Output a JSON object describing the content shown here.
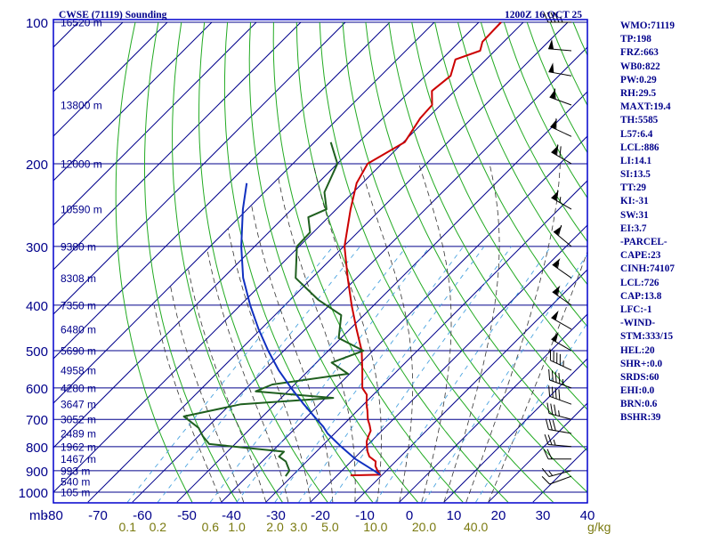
{
  "header": {
    "station": "CWSE (71119) Sounding",
    "time": "1200Z 16 OCT 25"
  },
  "indices": [
    "WMO:71119",
    "TP:198",
    "FRZ:663",
    "WB0:822",
    "PW:0.29",
    "RH:29.5",
    "MAXT:19.4",
    "TH:5585",
    "L57:6.4",
    "LCL:886",
    "LI:14.1",
    "SI:13.5",
    "TT:29",
    "KI:-31",
    "SW:31",
    "EI:3.7",
    "-PARCEL-",
    "CAPE:23",
    "CINH:74107",
    "LCL:726",
    "CAP:13.8",
    "LFC:-1",
    "-WIND-",
    "STM:333/15",
    "HEL:20",
    "SHR+:0.0",
    "SRDS:60",
    "EHI:0.0",
    "BRN:0.6",
    "BSHR:39"
  ],
  "colors": {
    "frame": "#0000cd",
    "isotherm": "#00008b",
    "dry_adiabat": "#22aa22",
    "moist_adiabat": "#333333",
    "mixing_ratio": "#4aa3df",
    "temperature": "#cc0000",
    "dewpoint": "#1f5f1f",
    "parcel": "#1030c0",
    "text": "#00008b",
    "mixing_label": "#7a7a10"
  },
  "chart_data": {
    "type": "line",
    "title": "CWSE (71119) Sounding",
    "subtitle": "1200Z 16 OCT 25",
    "xlabel": "",
    "ylabel": "mb",
    "pressure_ticks": [
      100,
      200,
      300,
      400,
      500,
      600,
      700,
      800,
      900,
      1000
    ],
    "pressure_tick_labels": [
      "100",
      "200",
      "300",
      "400",
      "500",
      "600",
      "700",
      "800",
      "900",
      "1000"
    ],
    "pressure_unit": "mb",
    "temperature_ticks": [
      -80,
      -70,
      -60,
      -50,
      -40,
      -30,
      -20,
      -10,
      0,
      10,
      20,
      30,
      40
    ],
    "temperature_tick_labels": [
      "-80",
      "-70",
      "-60",
      "-50",
      "-40",
      "-30",
      "-20",
      "-10",
      "0",
      "10",
      "20",
      "30",
      "40"
    ],
    "xlim": [
      -80,
      40
    ],
    "ylim": [
      1050,
      100
    ],
    "grid": true,
    "height_labels": [
      {
        "p": 100,
        "text": "16520 m"
      },
      {
        "p": 150,
        "text": "13800 m"
      },
      {
        "p": 200,
        "text": "12000 m"
      },
      {
        "p": 250,
        "text": "10590 m"
      },
      {
        "p": 300,
        "text": "9380 m"
      },
      {
        "p": 350,
        "text": "8308 m"
      },
      {
        "p": 400,
        "text": "7350 m"
      },
      {
        "p": 450,
        "text": "6480 m"
      },
      {
        "p": 500,
        "text": "5690 m"
      },
      {
        "p": 550,
        "text": "4958 m"
      },
      {
        "p": 600,
        "text": "4280 m"
      },
      {
        "p": 650,
        "text": "3647 m"
      },
      {
        "p": 700,
        "text": "3052 m"
      },
      {
        "p": 750,
        "text": "2489 m"
      },
      {
        "p": 800,
        "text": "1962 m"
      },
      {
        "p": 850,
        "text": "1467 m"
      },
      {
        "p": 900,
        "text": "993 m"
      },
      {
        "p": 950,
        "text": "540 m"
      },
      {
        "p": 1000,
        "text": "105 m"
      }
    ],
    "mixing_ratio_labels": [
      "0.1",
      "0.2",
      "0.6",
      "1.0",
      "2.0",
      "3.0",
      "5.0",
      "10.0",
      "20.0",
      "40.0"
    ],
    "mixing_ratio_values": [
      0.1,
      0.2,
      0.6,
      1.0,
      2.0,
      3.0,
      5.0,
      10.0,
      20.0,
      40.0
    ],
    "mixing_ratio_unit": "g/kg",
    "series": [
      {
        "key": "temperature",
        "points": [
          {
            "p": 921,
            "t": 3.0
          },
          {
            "p": 918,
            "t": 9.5
          },
          {
            "p": 900,
            "t": 8.0
          },
          {
            "p": 880,
            "t": 6.5
          },
          {
            "p": 860,
            "t": 5.5
          },
          {
            "p": 840,
            "t": 3.0
          },
          {
            "p": 820,
            "t": 1.5
          },
          {
            "p": 800,
            "t": 0.2
          },
          {
            "p": 780,
            "t": -1.0
          },
          {
            "p": 760,
            "t": -1.8
          },
          {
            "p": 740,
            "t": -2.5
          },
          {
            "p": 720,
            "t": -4.0
          },
          {
            "p": 700,
            "t": -5.7
          },
          {
            "p": 670,
            "t": -7.8
          },
          {
            "p": 650,
            "t": -9.4
          },
          {
            "p": 620,
            "t": -11.5
          },
          {
            "p": 600,
            "t": -14.0
          },
          {
            "p": 550,
            "t": -18.0
          },
          {
            "p": 500,
            "t": -22.5
          },
          {
            "p": 450,
            "t": -28.5
          },
          {
            "p": 400,
            "t": -35.0
          },
          {
            "p": 350,
            "t": -42.0
          },
          {
            "p": 300,
            "t": -49.8
          },
          {
            "p": 250,
            "t": -56.8
          },
          {
            "p": 220,
            "t": -61.3
          },
          {
            "p": 200,
            "t": -63.2
          },
          {
            "p": 180,
            "t": -59.7
          },
          {
            "p": 160,
            "t": -61.6
          },
          {
            "p": 150,
            "t": -61.9
          },
          {
            "p": 140,
            "t": -65.1
          },
          {
            "p": 130,
            "t": -64.3
          },
          {
            "p": 120,
            "t": -66.9
          },
          {
            "p": 115,
            "t": -63.3
          },
          {
            "p": 110,
            "t": -64.8
          },
          {
            "p": 100,
            "t": -65.0
          }
        ]
      },
      {
        "key": "dewpoint",
        "points": [
          {
            "p": 925,
            "t": -11.4
          },
          {
            "p": 900,
            "t": -11.8
          },
          {
            "p": 860,
            "t": -14.7
          },
          {
            "p": 840,
            "t": -17.3
          },
          {
            "p": 820,
            "t": -17.3
          },
          {
            "p": 790,
            "t": -35.8
          },
          {
            "p": 760,
            "t": -39.0
          },
          {
            "p": 730,
            "t": -41.8
          },
          {
            "p": 690,
            "t": -47.7
          },
          {
            "p": 650,
            "t": -37.6
          },
          {
            "p": 630,
            "t": -18.3
          },
          {
            "p": 610,
            "t": -37.2
          },
          {
            "p": 590,
            "t": -35.0
          },
          {
            "p": 560,
            "t": -20.4
          },
          {
            "p": 530,
            "t": -26.6
          },
          {
            "p": 500,
            "t": -22.1
          },
          {
            "p": 470,
            "t": -30.5
          },
          {
            "p": 420,
            "t": -35.1
          },
          {
            "p": 390,
            "t": -43.6
          },
          {
            "p": 350,
            "t": -53.7
          },
          {
            "p": 300,
            "t": -60.5
          },
          {
            "p": 280,
            "t": -60.7
          },
          {
            "p": 260,
            "t": -64.5
          },
          {
            "p": 250,
            "t": -62.2
          },
          {
            "p": 230,
            "t": -66.5
          },
          {
            "p": 200,
            "t": -70.0
          },
          {
            "p": 180,
            "t": -76.3
          }
        ]
      },
      {
        "key": "parcel",
        "points": [
          {
            "p": 918,
            "t": 9.5
          },
          {
            "p": 900,
            "t": 7.2
          },
          {
            "p": 850,
            "t": 0.4
          },
          {
            "p": 800,
            "t": -5.6
          },
          {
            "p": 750,
            "t": -11.6
          },
          {
            "p": 726,
            "t": -14.0
          },
          {
            "p": 700,
            "t": -17.2
          },
          {
            "p": 650,
            "t": -23.5
          },
          {
            "p": 600,
            "t": -30.0
          },
          {
            "p": 550,
            "t": -36.8
          },
          {
            "p": 500,
            "t": -43.5
          },
          {
            "p": 450,
            "t": -50.5
          },
          {
            "p": 400,
            "t": -57.8
          },
          {
            "p": 350,
            "t": -65.5
          },
          {
            "p": 300,
            "t": -73.0
          },
          {
            "p": 250,
            "t": -81.0
          },
          {
            "p": 220,
            "t": -86.0
          }
        ]
      }
    ],
    "wind_barbs": [
      {
        "p": 925,
        "dir": 250,
        "spd": 10
      },
      {
        "p": 900,
        "dir": 255,
        "spd": 15
      },
      {
        "p": 850,
        "dir": 270,
        "spd": 20
      },
      {
        "p": 800,
        "dir": 275,
        "spd": 25
      },
      {
        "p": 750,
        "dir": 280,
        "spd": 30
      },
      {
        "p": 700,
        "dir": 285,
        "spd": 35
      },
      {
        "p": 650,
        "dir": 290,
        "spd": 40
      },
      {
        "p": 600,
        "dir": 290,
        "spd": 45
      },
      {
        "p": 550,
        "dir": 295,
        "spd": 45
      },
      {
        "p": 500,
        "dir": 300,
        "spd": 50
      },
      {
        "p": 450,
        "dir": 300,
        "spd": 50
      },
      {
        "p": 400,
        "dir": 305,
        "spd": 55
      },
      {
        "p": 350,
        "dir": 305,
        "spd": 55
      },
      {
        "p": 300,
        "dir": 310,
        "spd": 60
      },
      {
        "p": 250,
        "dir": 300,
        "spd": 65
      },
      {
        "p": 200,
        "dir": 300,
        "spd": 70
      },
      {
        "p": 175,
        "dir": 295,
        "spd": 60
      },
      {
        "p": 150,
        "dir": 290,
        "spd": 60
      },
      {
        "p": 130,
        "dir": 280,
        "spd": 50
      },
      {
        "p": 115,
        "dir": 275,
        "spd": 50
      },
      {
        "p": 100,
        "dir": 270,
        "spd": 45
      }
    ]
  }
}
